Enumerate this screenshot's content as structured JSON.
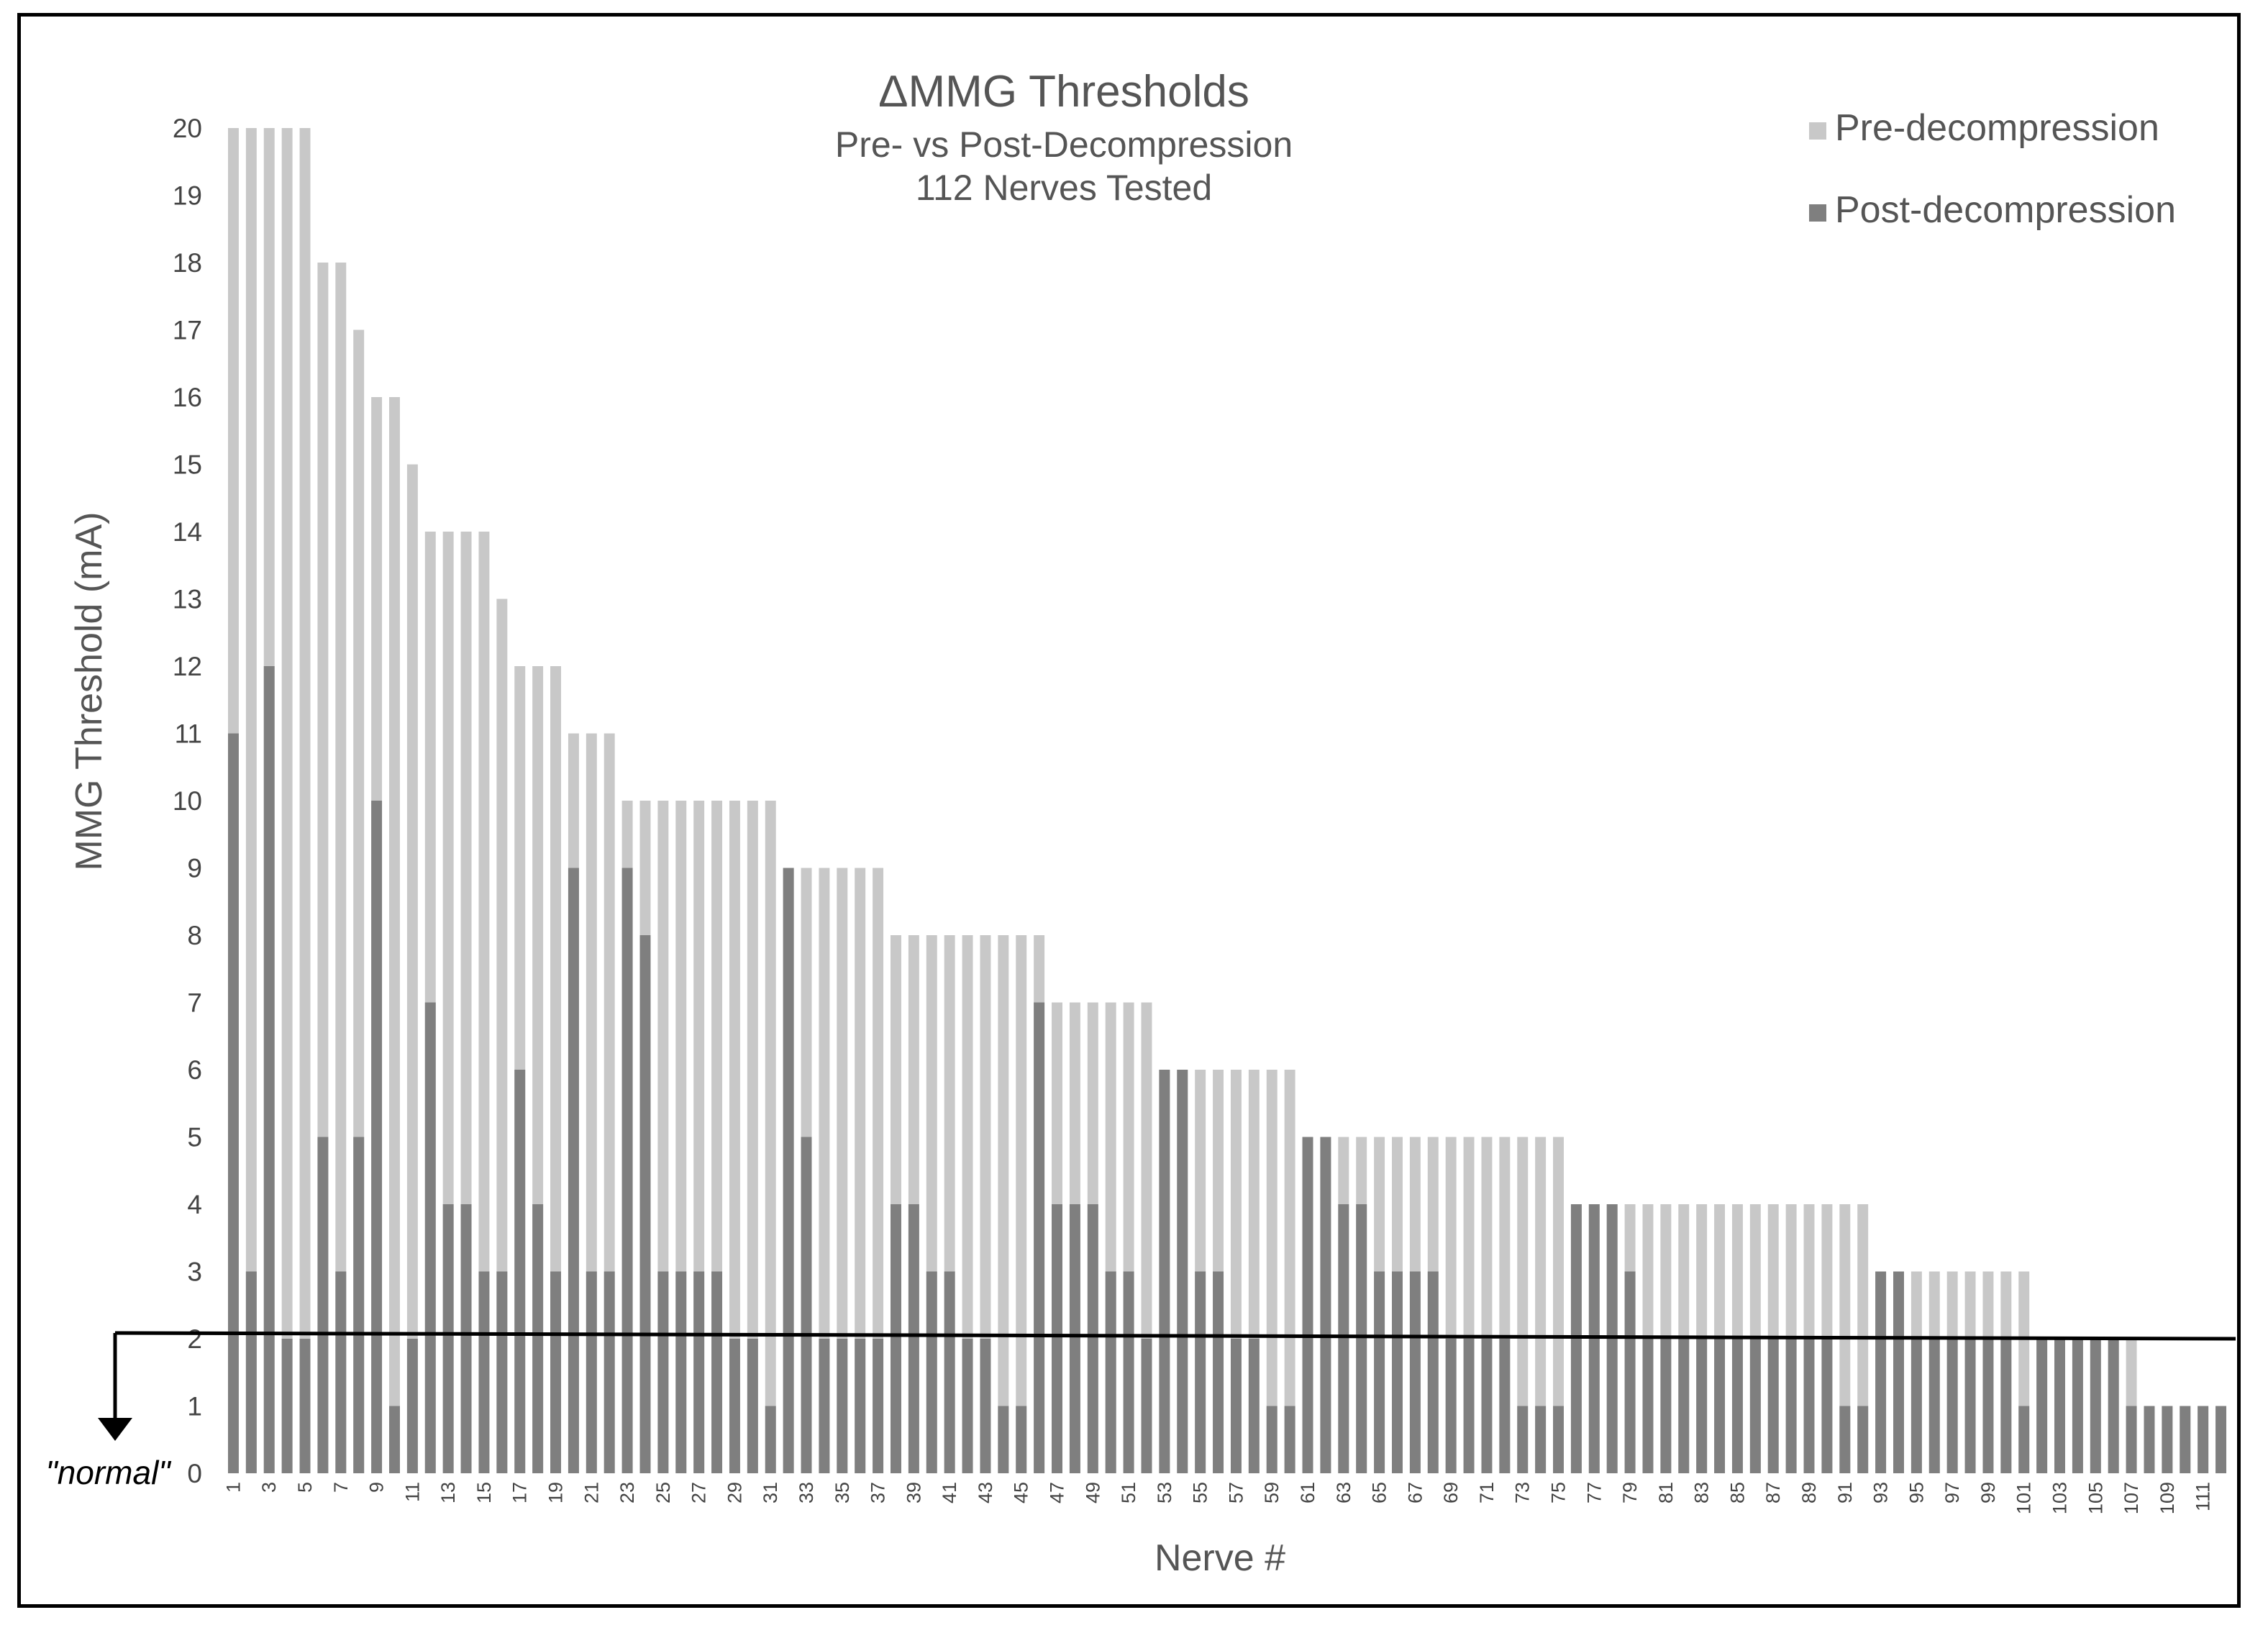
{
  "chart_data": {
    "type": "bar",
    "title": "ΔMMG Thresholds",
    "subtitle_lines": [
      "Pre- vs Post-Decompression",
      "112 Nerves Tested"
    ],
    "xlabel": "Nerve #",
    "ylabel": "MMG Threshold (mA)",
    "ylim": [
      0,
      20
    ],
    "yticks": [
      0,
      1,
      2,
      3,
      4,
      5,
      6,
      7,
      8,
      9,
      10,
      11,
      12,
      13,
      14,
      15,
      16,
      17,
      18,
      19,
      20
    ],
    "categories": [
      1,
      2,
      3,
      4,
      5,
      6,
      7,
      8,
      9,
      10,
      11,
      12,
      13,
      14,
      15,
      16,
      17,
      18,
      19,
      20,
      21,
      22,
      23,
      24,
      25,
      26,
      27,
      28,
      29,
      30,
      31,
      32,
      33,
      34,
      35,
      36,
      37,
      38,
      39,
      40,
      41,
      42,
      43,
      44,
      45,
      46,
      47,
      48,
      49,
      50,
      51,
      52,
      53,
      54,
      55,
      56,
      57,
      58,
      59,
      60,
      61,
      62,
      63,
      64,
      65,
      66,
      67,
      68,
      69,
      70,
      71,
      72,
      73,
      74,
      75,
      76,
      77,
      78,
      79,
      80,
      81,
      82,
      83,
      84,
      85,
      86,
      87,
      88,
      89,
      90,
      91,
      92,
      93,
      94,
      95,
      96,
      97,
      98,
      99,
      100,
      101,
      102,
      103,
      104,
      105,
      106,
      107,
      108,
      109,
      110,
      111,
      112
    ],
    "x_tick_labels": [
      "1",
      "3",
      "5",
      "7",
      "9",
      "11",
      "13",
      "15",
      "17",
      "19",
      "21",
      "23",
      "25",
      "27",
      "29",
      "31",
      "33",
      "35",
      "37",
      "39",
      "41",
      "43",
      "45",
      "47",
      "49",
      "51",
      "53",
      "55",
      "57",
      "59",
      "61",
      "63",
      "65",
      "67",
      "69",
      "71",
      "73",
      "75",
      "77",
      "79",
      "81",
      "83",
      "85",
      "87",
      "89",
      "91",
      "93",
      "95",
      "97",
      "99",
      "101",
      "103",
      "105",
      "107",
      "109",
      "111"
    ],
    "series": [
      {
        "name": "Pre-decompression",
        "color": "#c8c8c8",
        "values": [
          20,
          20,
          20,
          20,
          20,
          18,
          18,
          17,
          16,
          16,
          15,
          14,
          14,
          14,
          14,
          13,
          12,
          12,
          12,
          11,
          11,
          11,
          10,
          10,
          10,
          10,
          10,
          10,
          10,
          10,
          10,
          9,
          9,
          9,
          9,
          9,
          9,
          8,
          8,
          8,
          8,
          8,
          8,
          8,
          8,
          8,
          7,
          7,
          7,
          7,
          7,
          7,
          6,
          6,
          6,
          6,
          6,
          6,
          6,
          6,
          5,
          5,
          5,
          5,
          5,
          5,
          5,
          5,
          5,
          5,
          5,
          5,
          5,
          5,
          5,
          4,
          4,
          4,
          4,
          4,
          4,
          4,
          4,
          4,
          4,
          4,
          4,
          4,
          4,
          4,
          4,
          4,
          3,
          3,
          3,
          3,
          3,
          3,
          3,
          3,
          3,
          2,
          2,
          2,
          2,
          2,
          2,
          1,
          1,
          1,
          1,
          1
        ]
      },
      {
        "name": "Post-decompression",
        "color": "#7f7f7f",
        "values": [
          11,
          3,
          12,
          2,
          2,
          5,
          3,
          5,
          10,
          1,
          2,
          7,
          4,
          4,
          3,
          3,
          6,
          4,
          3,
          9,
          3,
          3,
          9,
          8,
          3,
          3,
          3,
          3,
          2,
          2,
          1,
          9,
          5,
          2,
          2,
          2,
          2,
          4,
          4,
          3,
          3,
          2,
          2,
          1,
          1,
          7,
          4,
          4,
          4,
          3,
          3,
          2,
          6,
          6,
          3,
          3,
          2,
          2,
          1,
          1,
          5,
          5,
          4,
          4,
          3,
          3,
          3,
          3,
          2,
          2,
          2,
          2,
          1,
          1,
          1,
          4,
          4,
          4,
          3,
          2,
          2,
          2,
          2,
          2,
          2,
          2,
          2,
          2,
          2,
          2,
          1,
          1,
          3,
          3,
          2,
          2,
          2,
          2,
          2,
          2,
          1,
          2,
          2,
          2,
          2,
          2,
          1,
          1,
          1,
          1,
          1,
          1
        ]
      }
    ],
    "legend": {
      "position": "top-right",
      "entries": [
        "Pre-decompression",
        "Post-decompression"
      ]
    },
    "reference_line": {
      "value": 2,
      "label": "\"normal\""
    }
  }
}
